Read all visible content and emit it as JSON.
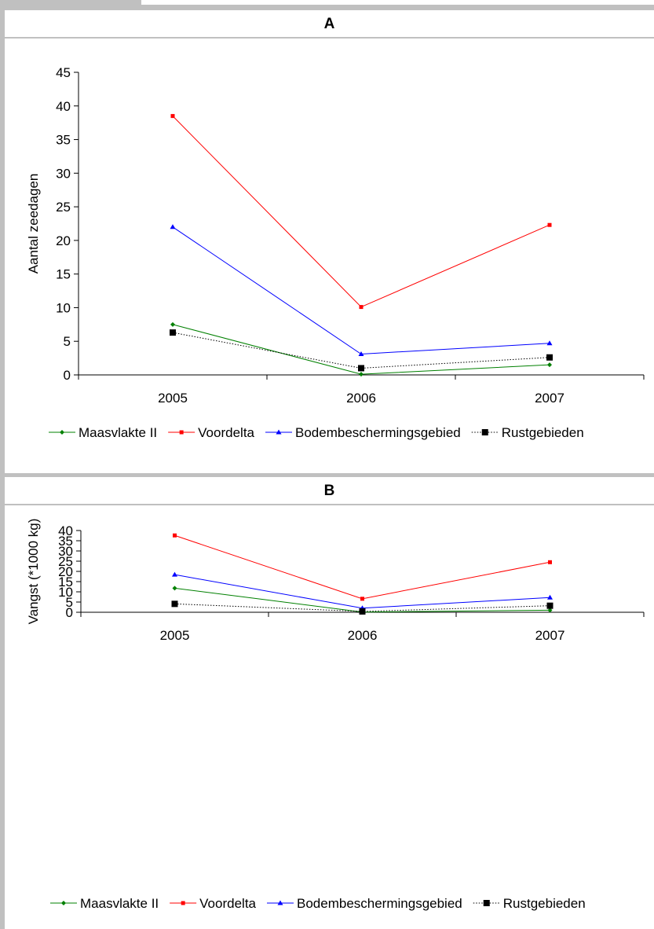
{
  "chart_data": [
    {
      "panel_label": "A",
      "type": "line",
      "categories": [
        "2005",
        "2006",
        "2007"
      ],
      "ylabel": "Aantal zeedagen",
      "xlabel": "",
      "ylim": [
        0,
        45
      ],
      "yticks": [
        "0",
        "5",
        "10",
        "15",
        "20",
        "25",
        "30",
        "35",
        "40",
        "45"
      ],
      "grid": false,
      "legend_position": "bottom",
      "series": [
        {
          "name": "Maasvlakte II",
          "values": [
            7.5,
            0.1,
            1.5
          ],
          "color": "#008000",
          "marker": "diamond",
          "dash": "solid"
        },
        {
          "name": "Voordelta",
          "values": [
            38.5,
            10.1,
            22.3
          ],
          "color": "#ff0000",
          "marker": "square",
          "dash": "solid"
        },
        {
          "name": "Bodembeschermingsgebied",
          "values": [
            22,
            3.1,
            4.7
          ],
          "color": "#0000ff",
          "marker": "triangle",
          "dash": "solid"
        },
        {
          "name": "Rustgebieden",
          "values": [
            6.3,
            1,
            2.6
          ],
          "color": "#000000",
          "marker": "bigsquare",
          "dash": "dotted"
        }
      ]
    },
    {
      "panel_label": "B",
      "type": "line",
      "categories": [
        "2005",
        "2006",
        "2007"
      ],
      "ylabel": "Vangst (*1000 kg)",
      "xlabel": "",
      "ylim": [
        0,
        40
      ],
      "yticks": [
        "0",
        "5",
        "10",
        "15",
        "20",
        "25",
        "30",
        "35",
        "40"
      ],
      "grid": false,
      "legend_position": "bottom",
      "series": [
        {
          "name": "Maasvlakte II",
          "values": [
            11.8,
            0.1,
            1
          ],
          "color": "#008000",
          "marker": "diamond",
          "dash": "solid"
        },
        {
          "name": "Voordelta",
          "values": [
            37.6,
            6.6,
            24.5
          ],
          "color": "#ff0000",
          "marker": "square",
          "dash": "solid"
        },
        {
          "name": "Bodembeschermingsgebied",
          "values": [
            18.4,
            2,
            7.2
          ],
          "color": "#0000ff",
          "marker": "triangle",
          "dash": "solid"
        },
        {
          "name": "Rustgebieden",
          "values": [
            4.1,
            0.4,
            3.2
          ],
          "color": "#000000",
          "marker": "bigsquare",
          "dash": "dotted"
        }
      ]
    }
  ]
}
